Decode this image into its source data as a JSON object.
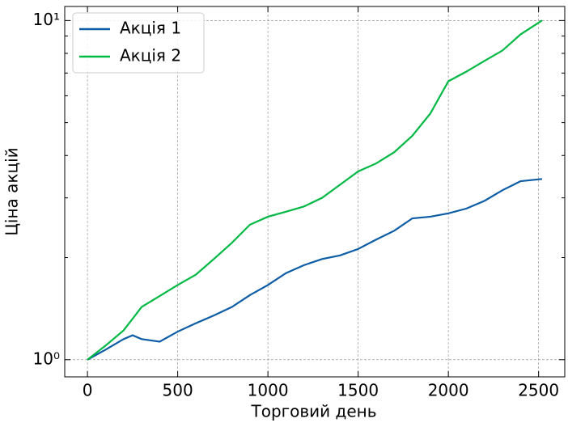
{
  "chart_data": {
    "type": "line",
    "xlabel": "Торговий день",
    "ylabel": "Ціна акцій",
    "x": [
      0,
      100,
      200,
      250,
      300,
      400,
      500,
      600,
      700,
      800,
      900,
      1000,
      1100,
      1200,
      1300,
      1400,
      1500,
      1600,
      1700,
      1800,
      1900,
      2000,
      2100,
      2200,
      2300,
      2400,
      2519
    ],
    "series": [
      {
        "name": "Акція 1",
        "color": "#0c5da5",
        "values": [
          1.0,
          1.07,
          1.15,
          1.18,
          1.15,
          1.13,
          1.21,
          1.28,
          1.35,
          1.43,
          1.55,
          1.66,
          1.8,
          1.9,
          1.98,
          2.03,
          2.12,
          2.26,
          2.4,
          2.61,
          2.64,
          2.7,
          2.79,
          2.94,
          3.16,
          3.36,
          3.41
        ]
      },
      {
        "name": "Акція 2",
        "color": "#00b945",
        "values": [
          1.0,
          1.1,
          1.22,
          1.32,
          1.43,
          1.54,
          1.66,
          1.78,
          1.98,
          2.21,
          2.5,
          2.64,
          2.73,
          2.83,
          3.0,
          3.28,
          3.59,
          3.79,
          4.09,
          4.57,
          5.32,
          6.62,
          7.07,
          7.6,
          8.16,
          9.1,
          10.0
        ]
      }
    ],
    "xlim": [
      -126,
      2645
    ],
    "xticks": [
      0,
      500,
      1000,
      1500,
      2000,
      2500
    ],
    "ylim": [
      0.89,
      11
    ],
    "yscale": "log",
    "yticks": [
      {
        "value": 1,
        "label": "10⁰"
      },
      {
        "value": 10,
        "label": "10¹"
      }
    ],
    "yminorticks": [
      2,
      3,
      4,
      5,
      6,
      7,
      8,
      9
    ],
    "grid": true,
    "legend": "upper left"
  }
}
